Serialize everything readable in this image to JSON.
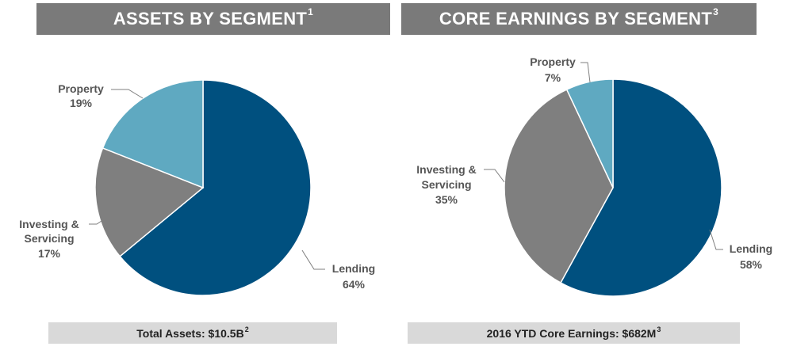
{
  "colors": {
    "lending": "#00507f",
    "investing": "#7f7f7f",
    "property": "#5fa9c1",
    "header_bg": "#7a7a7a",
    "footer_bg": "#d9d9d9"
  },
  "chart_data": [
    {
      "type": "pie",
      "title": "ASSETS BY SEGMENT",
      "title_sup": "1",
      "footer": "Total Assets: $10.5B",
      "footer_sup": "2",
      "slices": [
        {
          "label": "Lending",
          "pct_label": "64%",
          "value": 64
        },
        {
          "label": "Investing & Servicing",
          "pct_label": "17%",
          "value": 17
        },
        {
          "label": "Property",
          "pct_label": "19%",
          "value": 19
        }
      ]
    },
    {
      "type": "pie",
      "title": "CORE EARNINGS BY SEGMENT",
      "title_sup": "3",
      "footer": "2016 YTD Core Earnings: $682M",
      "footer_sup": "3",
      "slices": [
        {
          "label": "Lending",
          "pct_label": "58%",
          "value": 58
        },
        {
          "label": "Investing & Servicing",
          "pct_label": "35%",
          "value": 35
        },
        {
          "label": "Property",
          "pct_label": "7%",
          "value": 7
        }
      ]
    }
  ]
}
